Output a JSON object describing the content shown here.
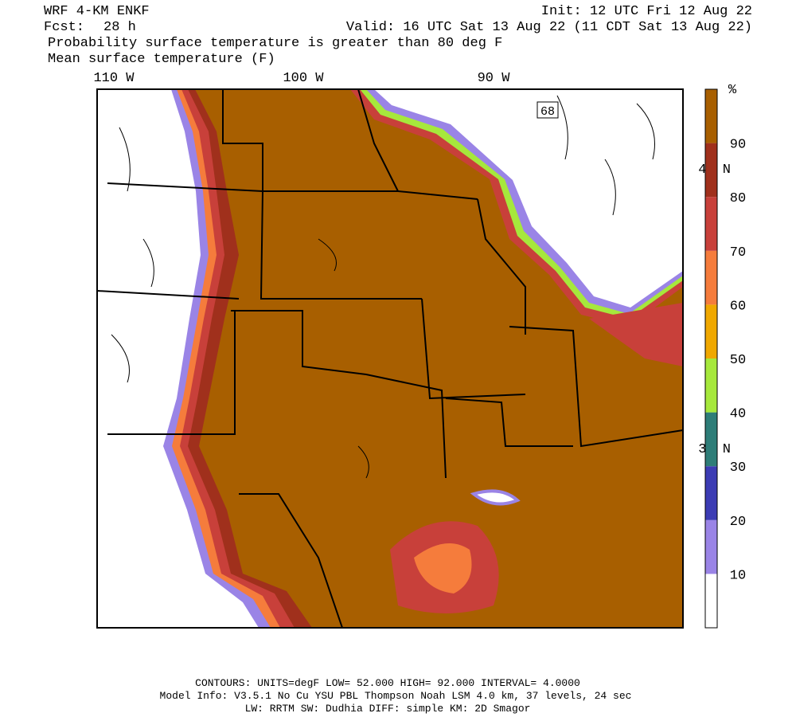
{
  "header": {
    "model": "WRF 4-KM ENKF",
    "init": "Init: 12 UTC Fri 12 Aug 22",
    "fcst_label": "Fcst:",
    "fcst": "28 h",
    "valid": "Valid: 16 UTC Sat 13 Aug 22 (11 CDT Sat 13 Aug 22)",
    "field1": "Probability surface temperature is greater than 80 deg F",
    "field2": "Mean surface temperature (F)"
  },
  "map": {
    "lon_labels": [
      "110 W",
      "100 W",
      "90 W"
    ],
    "lat_labels": [
      "40 N",
      "30 N"
    ],
    "marker": "68"
  },
  "colorbar": {
    "unit": "%",
    "lim": [
      0,
      100
    ],
    "ticks": [
      10,
      20,
      30,
      40,
      50,
      60,
      70,
      80,
      90
    ],
    "colors": [
      "#ffffff",
      "#9a84e6",
      "#3c3cb4",
      "#2e7d78",
      "#a6e83c",
      "#f0a800",
      "#f57c3c",
      "#c8403a",
      "#a0301c",
      "#a85f00"
    ]
  },
  "footer": {
    "contours": "CONTOURS:  UNITS=degF  LOW=   52.000      HIGH=   92.000      INTERVAL=    4.0000",
    "model_info": "Model Info: V3.5.1    No Cu   YSU PBL  Thompson     Noah LSM  4.0 km,  37 levels,    24 sec",
    "physics": "LW: RRTM SW: Dudhia  DIFF: simple KM: 2D Smagor"
  }
}
